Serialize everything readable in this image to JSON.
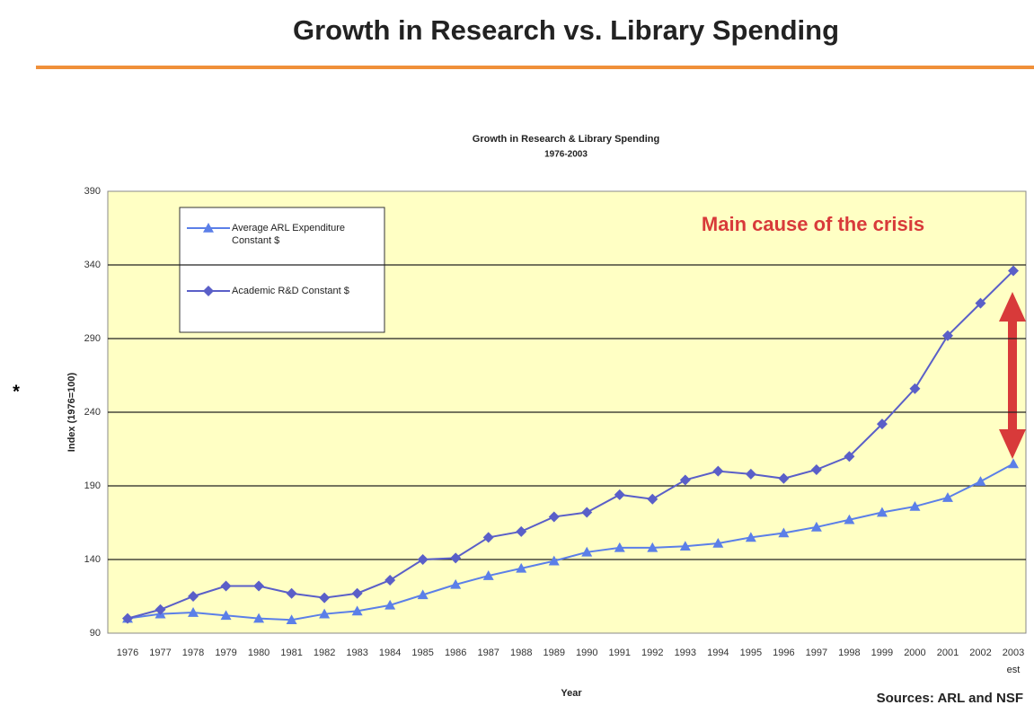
{
  "slide": {
    "title": "Growth in Research vs. Library Spending",
    "note": "*",
    "source": "Sources: ARL and NSF"
  },
  "chart_data": {
    "type": "line",
    "title": "Growth in Research & Library Spending",
    "subtitle": "1976-2003",
    "x_label": "Year",
    "y_label": "Index (1976=100)",
    "annotation": "Main cause of the crisis",
    "category_note": "est",
    "categories": [
      "1976",
      "1977",
      "1978",
      "1979",
      "1980",
      "1981",
      "1982",
      "1983",
      "1984",
      "1985",
      "1986",
      "1987",
      "1988",
      "1989",
      "1990",
      "1991",
      "1992",
      "1993",
      "1994",
      "1995",
      "1996",
      "1997",
      "1998",
      "1999",
      "2000",
      "2001",
      "2002",
      "2003"
    ],
    "series": [
      {
        "name": "Average ARL Expenditure Constant $",
        "color": "#5b7fe8",
        "marker": "triangle",
        "values": [
          100,
          103,
          104,
          102,
          100,
          99,
          103,
          105,
          109,
          116,
          123,
          129,
          134,
          139,
          145,
          148,
          148,
          149,
          151,
          155,
          158,
          162,
          167,
          172,
          176,
          182,
          193,
          205
        ]
      },
      {
        "name": "Academic R&D Constant $",
        "color": "#5a5fc8",
        "marker": "diamond",
        "values": [
          100,
          106,
          115,
          122,
          122,
          117,
          114,
          117,
          126,
          140,
          141,
          155,
          159,
          169,
          172,
          184,
          181,
          194,
          200,
          198,
          195,
          201,
          210,
          232,
          256,
          292,
          314,
          336
        ]
      }
    ],
    "ylim": [
      90,
      390
    ],
    "yticks": [
      90,
      140,
      190,
      240,
      290,
      340,
      390
    ],
    "grid": true
  }
}
